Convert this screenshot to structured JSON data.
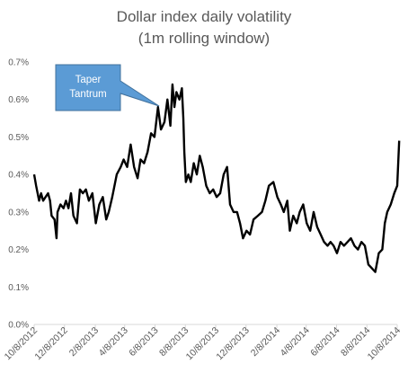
{
  "chart_data": {
    "type": "line",
    "title": [
      "Dollar index daily volatility",
      "(1m rolling window)"
    ],
    "xlabel": "",
    "ylabel": "",
    "ylim": [
      0,
      0.7
    ],
    "y_unit": "%",
    "grid": false,
    "legend": "none",
    "x_tick_labels": [
      "10/8/2012",
      "12/8/2012",
      "2/8/2013",
      "4/8/2013",
      "6/8/2013",
      "8/8/2013",
      "10/8/2013",
      "12/8/2013",
      "2/8/2014",
      "4/8/2014",
      "6/8/2014",
      "8/8/2014",
      "10/8/2014"
    ],
    "y_tick_labels": [
      "0.0%",
      "0.1%",
      "0.2%",
      "0.3%",
      "0.4%",
      "0.5%",
      "0.6%",
      "0.7%"
    ],
    "annotation": {
      "text": [
        "Taper",
        "Tantrum"
      ],
      "date": "2013-07-08"
    },
    "series": [
      {
        "color": "#000000",
        "points": [
          [
            "2012-10-08",
            0.4
          ],
          [
            "2012-10-12",
            0.37
          ],
          [
            "2012-10-18",
            0.33
          ],
          [
            "2012-10-22",
            0.35
          ],
          [
            "2012-10-26",
            0.33
          ],
          [
            "2012-10-31",
            0.34
          ],
          [
            "2012-11-05",
            0.35
          ],
          [
            "2012-11-09",
            0.33
          ],
          [
            "2012-11-12",
            0.29
          ],
          [
            "2012-11-18",
            0.28
          ],
          [
            "2012-11-22",
            0.23
          ],
          [
            "2012-11-24",
            0.3
          ],
          [
            "2012-11-30",
            0.32
          ],
          [
            "2012-12-06",
            0.31
          ],
          [
            "2012-12-11",
            0.33
          ],
          [
            "2012-12-16",
            0.31
          ],
          [
            "2012-12-21",
            0.35
          ],
          [
            "2012-12-26",
            0.29
          ],
          [
            "2013-01-02",
            0.27
          ],
          [
            "2013-01-08",
            0.36
          ],
          [
            "2013-01-14",
            0.35
          ],
          [
            "2013-01-20",
            0.36
          ],
          [
            "2013-01-26",
            0.33
          ],
          [
            "2013-02-02",
            0.35
          ],
          [
            "2013-02-09",
            0.27
          ],
          [
            "2013-02-16",
            0.32
          ],
          [
            "2013-02-23",
            0.34
          ],
          [
            "2013-03-02",
            0.28
          ],
          [
            "2013-03-07",
            0.3
          ],
          [
            "2013-03-14",
            0.34
          ],
          [
            "2013-03-23",
            0.4
          ],
          [
            "2013-03-31",
            0.42
          ],
          [
            "2013-04-06",
            0.44
          ],
          [
            "2013-04-13",
            0.42
          ],
          [
            "2013-04-20",
            0.48
          ],
          [
            "2013-04-27",
            0.42
          ],
          [
            "2013-05-04",
            0.39
          ],
          [
            "2013-05-10",
            0.44
          ],
          [
            "2013-05-17",
            0.43
          ],
          [
            "2013-05-24",
            0.46
          ],
          [
            "2013-05-31",
            0.51
          ],
          [
            "2013-06-07",
            0.5
          ],
          [
            "2013-06-14",
            0.58
          ],
          [
            "2013-06-20",
            0.52
          ],
          [
            "2013-06-27",
            0.54
          ],
          [
            "2013-07-03",
            0.6
          ],
          [
            "2013-07-09",
            0.53
          ],
          [
            "2013-07-13",
            0.64
          ],
          [
            "2013-07-17",
            0.58
          ],
          [
            "2013-07-21",
            0.62
          ],
          [
            "2013-07-27",
            0.6
          ],
          [
            "2013-08-01",
            0.63
          ],
          [
            "2013-08-04",
            0.55
          ],
          [
            "2013-08-06",
            0.46
          ],
          [
            "2013-08-09",
            0.38
          ],
          [
            "2013-08-14",
            0.4
          ],
          [
            "2013-08-19",
            0.38
          ],
          [
            "2013-08-25",
            0.43
          ],
          [
            "2013-08-31",
            0.4
          ],
          [
            "2013-09-06",
            0.45
          ],
          [
            "2013-09-12",
            0.42
          ],
          [
            "2013-09-19",
            0.37
          ],
          [
            "2013-09-26",
            0.35
          ],
          [
            "2013-10-03",
            0.36
          ],
          [
            "2013-10-10",
            0.34
          ],
          [
            "2013-10-17",
            0.35
          ],
          [
            "2013-10-24",
            0.4
          ],
          [
            "2013-10-31",
            0.42
          ],
          [
            "2013-11-06",
            0.32
          ],
          [
            "2013-11-13",
            0.3
          ],
          [
            "2013-11-20",
            0.3
          ],
          [
            "2013-11-26",
            0.27
          ],
          [
            "2013-12-02",
            0.23
          ],
          [
            "2013-12-09",
            0.25
          ],
          [
            "2013-12-16",
            0.24
          ],
          [
            "2013-12-23",
            0.28
          ],
          [
            "2014-01-01",
            0.29
          ],
          [
            "2014-01-09",
            0.3
          ],
          [
            "2014-01-16",
            0.33
          ],
          [
            "2014-01-23",
            0.37
          ],
          [
            "2014-02-01",
            0.38
          ],
          [
            "2014-02-09",
            0.34
          ],
          [
            "2014-02-16",
            0.32
          ],
          [
            "2014-02-22",
            0.3
          ],
          [
            "2014-03-01",
            0.33
          ],
          [
            "2014-03-06",
            0.25
          ],
          [
            "2014-03-13",
            0.29
          ],
          [
            "2014-03-20",
            0.27
          ],
          [
            "2014-03-26",
            0.3
          ],
          [
            "2014-04-02",
            0.32
          ],
          [
            "2014-04-09",
            0.27
          ],
          [
            "2014-04-16",
            0.25
          ],
          [
            "2014-04-23",
            0.3
          ],
          [
            "2014-04-30",
            0.26
          ],
          [
            "2014-05-07",
            0.24
          ],
          [
            "2014-05-14",
            0.22
          ],
          [
            "2014-05-21",
            0.21
          ],
          [
            "2014-05-27",
            0.22
          ],
          [
            "2014-06-02",
            0.21
          ],
          [
            "2014-06-09",
            0.19
          ],
          [
            "2014-06-16",
            0.22
          ],
          [
            "2014-06-23",
            0.21
          ],
          [
            "2014-06-30",
            0.22
          ],
          [
            "2014-07-07",
            0.23
          ],
          [
            "2014-07-14",
            0.21
          ],
          [
            "2014-07-21",
            0.2
          ],
          [
            "2014-07-28",
            0.22
          ],
          [
            "2014-08-04",
            0.21
          ],
          [
            "2014-08-11",
            0.16
          ],
          [
            "2014-08-18",
            0.15
          ],
          [
            "2014-08-25",
            0.14
          ],
          [
            "2014-09-01",
            0.19
          ],
          [
            "2014-09-08",
            0.2
          ],
          [
            "2014-09-13",
            0.27
          ],
          [
            "2014-09-18",
            0.3
          ],
          [
            "2014-09-25",
            0.32
          ],
          [
            "2014-10-02",
            0.35
          ],
          [
            "2014-10-08",
            0.37
          ],
          [
            "2014-10-12",
            0.49
          ]
        ]
      }
    ]
  }
}
